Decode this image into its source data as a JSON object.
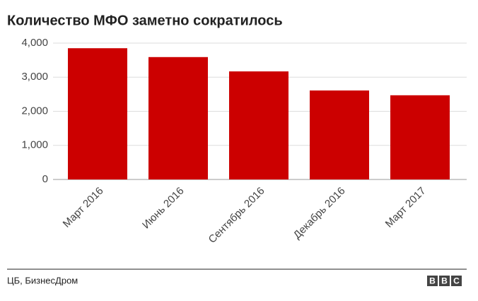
{
  "chart_data": {
    "type": "bar",
    "title": "Количество МФО заметно сократилось",
    "categories": [
      "Март 2016",
      "Июнь 2016",
      "Сентябрь 2016",
      "Декабрь 2016",
      "Март 2017"
    ],
    "values": [
      3850,
      3590,
      3170,
      2610,
      2470
    ],
    "color": "#cc0000",
    "ylim": [
      0,
      4000
    ],
    "yticks": [
      0,
      {
        "value": 1000,
        "label": "1,000"
      },
      {
        "value": 2000,
        "label": "2,000"
      },
      {
        "value": 3000,
        "label": "3,000"
      },
      {
        "value": 4000,
        "label": "4,000"
      }
    ],
    "grid": true,
    "source": "ЦБ, БизнесДром",
    "logo": "BBC"
  }
}
